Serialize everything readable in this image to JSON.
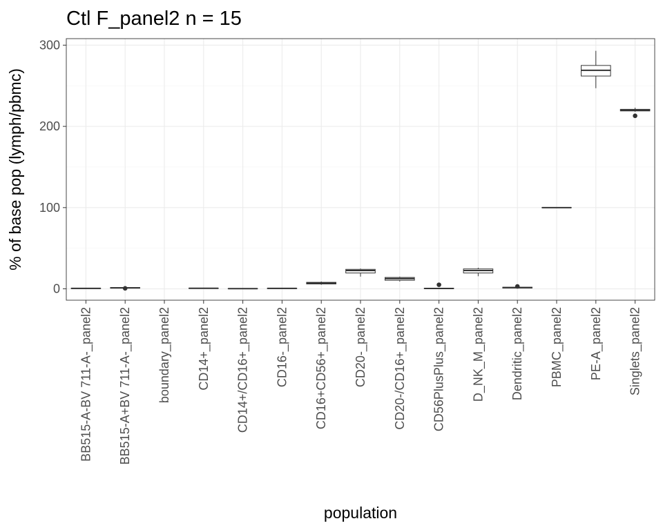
{
  "chart_data": {
    "type": "box",
    "title": "Ctl F_panel2 n = 15",
    "xlabel": "population",
    "ylabel": "% of base pop (lymph/pbmc)",
    "ylim": [
      -14,
      308
    ],
    "yticks": [
      0,
      100,
      200,
      300
    ],
    "yticks_minor": [
      50,
      150,
      250
    ],
    "grid": true,
    "categories": [
      "BB515-A-BV 711-A-_panel2",
      "BB515-A+BV 711-A-_panel2",
      "boundary_panel2",
      "CD14+_panel2",
      "CD14+/CD16+_panel2",
      "CD16-_panel2",
      "CD16+CD56+_panel2",
      "CD20-_panel2",
      "CD20-/CD16+_panel2",
      "CD56PlusPlus_panel2",
      "D_NK_M_panel2",
      "Dendritic_panel2",
      "PBMC_panel2",
      "PE-A_panel2",
      "Singlets_panel2"
    ],
    "boxes": [
      {
        "min": 0.1,
        "q1": 0.3,
        "median": 0.5,
        "q3": 0.8,
        "max": 1.1,
        "outliers": []
      },
      {
        "min": 0.5,
        "q1": 0.9,
        "median": 1.2,
        "q3": 1.6,
        "max": 2.0,
        "outliers": [
          0.6
        ]
      },
      null,
      {
        "min": 0.2,
        "q1": 0.5,
        "median": 0.7,
        "q3": 0.9,
        "max": 1.2,
        "outliers": []
      },
      {
        "min": 0.0,
        "q1": 0.1,
        "median": 0.2,
        "q3": 0.3,
        "max": 0.4,
        "outliers": []
      },
      {
        "min": 0.1,
        "q1": 0.3,
        "median": 0.5,
        "q3": 0.7,
        "max": 0.9,
        "outliers": []
      },
      {
        "min": 5.0,
        "q1": 6.0,
        "median": 7.0,
        "q3": 8.0,
        "max": 9.0,
        "outliers": []
      },
      {
        "min": 15.0,
        "q1": 19.5,
        "median": 22.5,
        "q3": 24.0,
        "max": 25.0,
        "outliers": []
      },
      {
        "min": 9.0,
        "q1": 10.5,
        "median": 12.5,
        "q3": 14.0,
        "max": 15.0,
        "outliers": []
      },
      {
        "min": 0.0,
        "q1": 0.2,
        "median": 0.4,
        "q3": 0.8,
        "max": 1.2,
        "outliers": [
          5.0
        ]
      },
      {
        "min": 15.5,
        "q1": 19.5,
        "median": 22.5,
        "q3": 24.5,
        "max": 26.0,
        "outliers": []
      },
      {
        "min": 0.5,
        "q1": 1.0,
        "median": 1.5,
        "q3": 2.0,
        "max": 2.5,
        "outliers": [
          3.0
        ]
      },
      {
        "min": 100,
        "q1": 100,
        "median": 100,
        "q3": 100,
        "max": 100,
        "outliers": []
      },
      {
        "min": 247,
        "q1": 262,
        "median": 269,
        "q3": 275,
        "max": 293,
        "outliers": []
      },
      {
        "min": 218,
        "q1": 219,
        "median": 220,
        "q3": 221,
        "max": 223,
        "outliers": [
          213
        ]
      }
    ]
  }
}
